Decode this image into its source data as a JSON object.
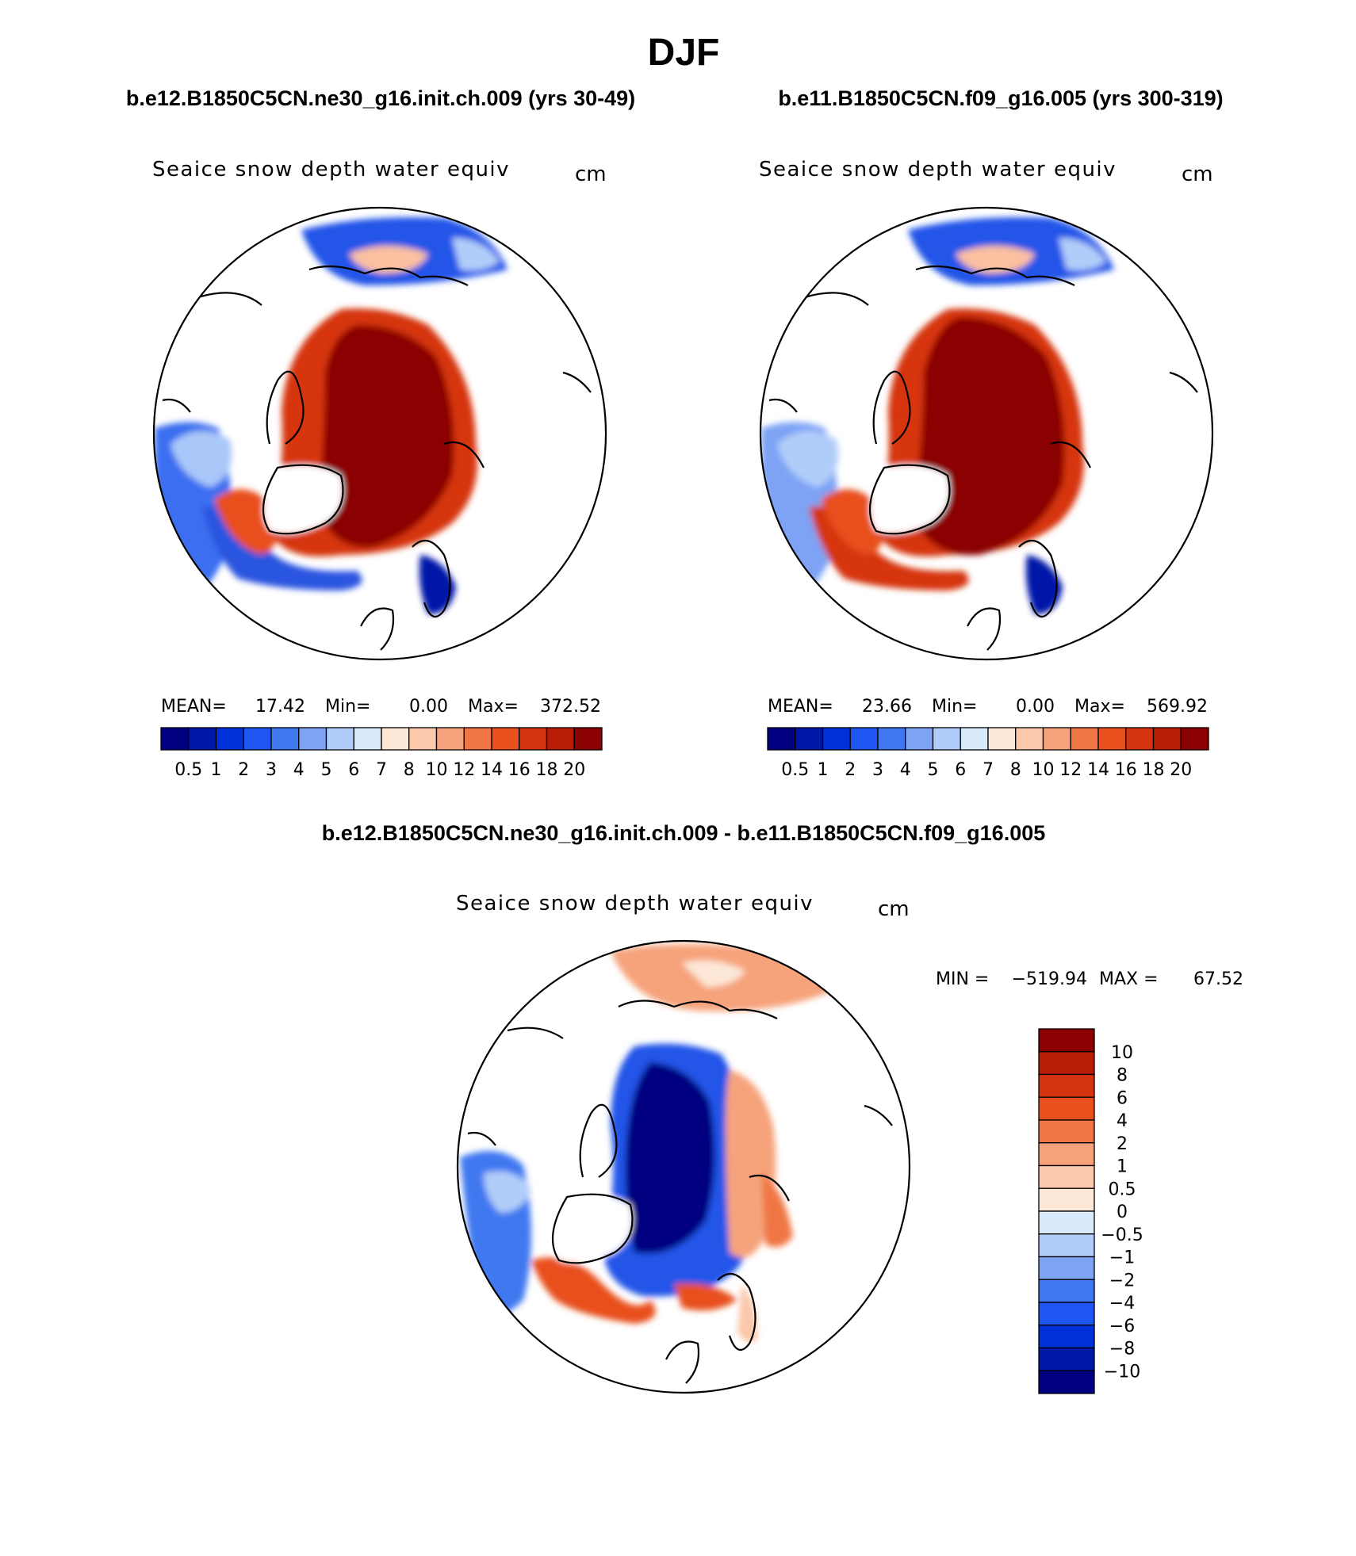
{
  "title": "DJF",
  "cases": {
    "left": "b.e12.B1850C5CN.ne30_g16.init.ch.009 (yrs 30-49)",
    "right": "b.e11.B1850C5CN.f09_g16.005 (yrs 300-319)",
    "diff": "b.e12.B1850C5CN.ne30_g16.init.ch.009 - b.e11.B1850C5CN.f09_g16.005"
  },
  "chart_data": [
    {
      "type": "heatmap",
      "projection": "north-polar-stereographic",
      "title": "Seaice snow depth water equiv",
      "units": "cm",
      "stats": {
        "mean_label": "MEAN=",
        "mean": "17.42",
        "min_label": "Min=",
        "min": "0.00",
        "max_label": "Max=",
        "max": "372.52"
      },
      "colorbar": {
        "orientation": "horizontal",
        "levels": [
          "0.5",
          "1",
          "2",
          "3",
          "4",
          "5",
          "6",
          "7",
          "8",
          "10",
          "12",
          "14",
          "16",
          "18",
          "20"
        ],
        "colors": [
          "#000080",
          "#0018a8",
          "#0030d8",
          "#1f55f0",
          "#4078f0",
          "#7ea3f5",
          "#b0cdf9",
          "#d9ebfb",
          "#fde8d8",
          "#fbc8ab",
          "#f6a37c",
          "#f07744",
          "#e8501e",
          "#d63410",
          "#b81d05",
          "#8b0000"
        ]
      }
    },
    {
      "type": "heatmap",
      "projection": "north-polar-stereographic",
      "title": "Seaice snow depth water equiv",
      "units": "cm",
      "stats": {
        "mean_label": "MEAN=",
        "mean": "23.66",
        "min_label": "Min=",
        "min": "0.00",
        "max_label": "Max=",
        "max": "569.92"
      },
      "colorbar": {
        "orientation": "horizontal",
        "levels": [
          "0.5",
          "1",
          "2",
          "3",
          "4",
          "5",
          "6",
          "7",
          "8",
          "10",
          "12",
          "14",
          "16",
          "18",
          "20"
        ],
        "colors": [
          "#000080",
          "#0018a8",
          "#0030d8",
          "#1f55f0",
          "#4078f0",
          "#7ea3f5",
          "#b0cdf9",
          "#d9ebfb",
          "#fde8d8",
          "#fbc8ab",
          "#f6a37c",
          "#f07744",
          "#e8501e",
          "#d63410",
          "#b81d05",
          "#8b0000"
        ]
      }
    },
    {
      "type": "heatmap",
      "projection": "north-polar-stereographic",
      "title": "Seaice snow depth water equiv",
      "units": "cm",
      "stats": {
        "min_label": "MIN =",
        "min": "−519.94",
        "max_label": "MAX =",
        "max": "67.52"
      },
      "colorbar": {
        "orientation": "vertical",
        "levels": [
          "10",
          "8",
          "6",
          "4",
          "2",
          "1",
          "0.5",
          "0",
          "−0.5",
          "−1",
          "−2",
          "−4",
          "−6",
          "−8",
          "−10"
        ],
        "colors": [
          "#8b0000",
          "#b81d05",
          "#d63410",
          "#e8501e",
          "#f07744",
          "#f6a37c",
          "#fbc8ab",
          "#fde8d8",
          "#d9ebfb",
          "#b0cdf9",
          "#7ea3f5",
          "#4078f0",
          "#1f55f0",
          "#0030d8",
          "#0018a8",
          "#000080"
        ]
      }
    }
  ]
}
